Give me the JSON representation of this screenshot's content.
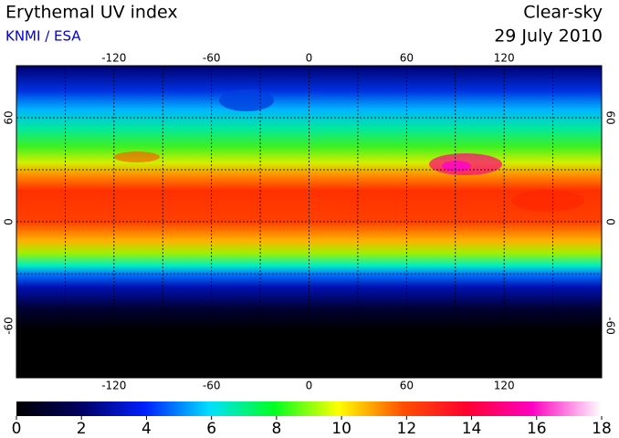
{
  "header": {
    "title": "Erythemal UV index",
    "source": "KNMI / ESA",
    "condition": "Clear-sky",
    "date": "29 July 2010"
  },
  "map": {
    "lonlim": [
      -180,
      180
    ],
    "latlim": [
      -90,
      90
    ],
    "lon_ticks": [
      -120,
      -60,
      0,
      60,
      120
    ],
    "lat_ticks": [
      60,
      0,
      -60
    ]
  },
  "colorbar": {
    "lim": [
      0,
      18
    ],
    "ticks": [
      0,
      2,
      4,
      6,
      8,
      10,
      12,
      14,
      16,
      18
    ]
  }
}
